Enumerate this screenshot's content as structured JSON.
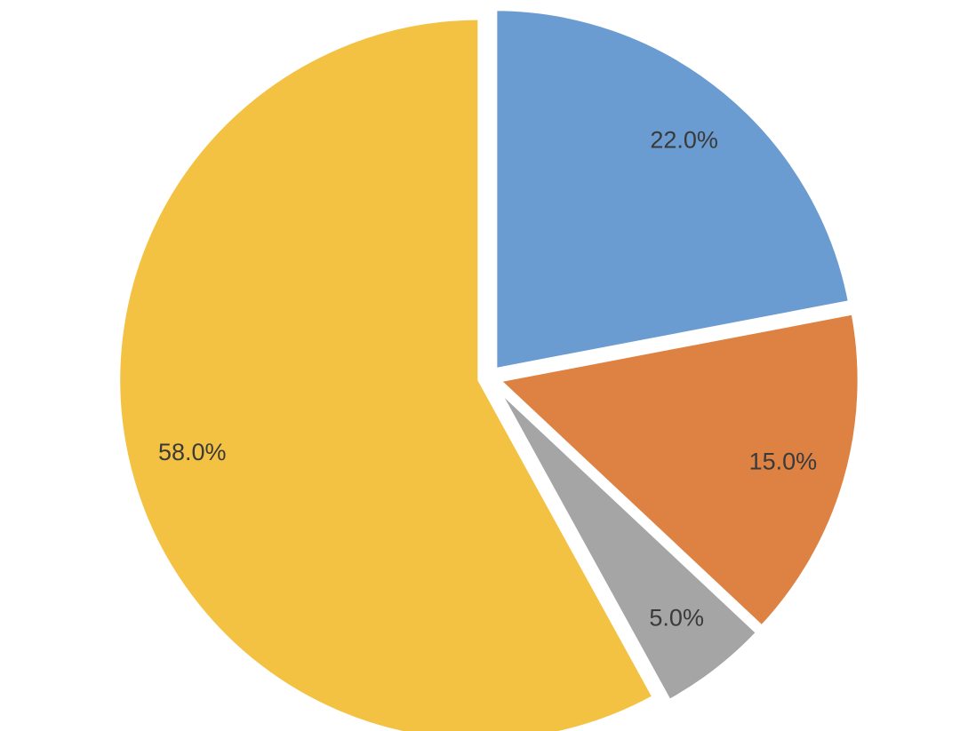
{
  "chart_data": {
    "type": "pie",
    "values": [
      22,
      15,
      5,
      58
    ],
    "value_labels": [
      "22.0%",
      "15.0%",
      "5.0%",
      "58.0%"
    ],
    "colors": [
      "#6a9bd1",
      "#de8244",
      "#a5a5a5",
      "#f3c242"
    ]
  }
}
